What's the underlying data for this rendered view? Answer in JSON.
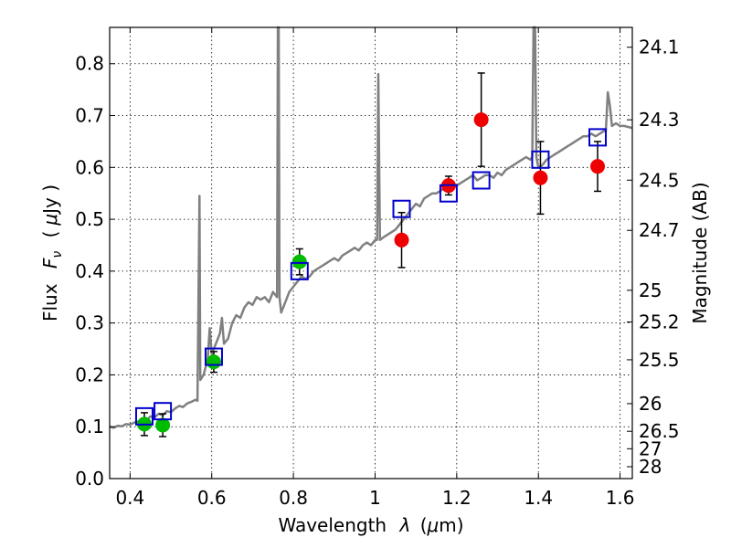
{
  "chart_data": {
    "type": "scatter",
    "xlabel_prefix": "Wavelength",
    "xlabel_var": "λ",
    "xlabel_unit_open": "(",
    "xlabel_unit_mu": "μ",
    "xlabel_unit_rest": "m)",
    "ylabel_prefix": "Flux",
    "ylabel_var": "F",
    "ylabel_sub": "ν",
    "ylabel_unit_open": "(",
    "ylabel_unit_mu": "μ",
    "ylabel_unit_rest": "Jy )",
    "y2label": "Magnitude (AB)",
    "xlim": [
      0.35,
      1.63
    ],
    "ylim": [
      0.0,
      0.87
    ],
    "grid": true,
    "x_ticks": [
      0.4,
      0.6,
      0.8,
      1.0,
      1.2,
      1.4,
      1.6
    ],
    "x_tick_labels": [
      "0.4",
      "0.6",
      "0.8",
      "1",
      "1.2",
      "1.4",
      "1.6"
    ],
    "y_ticks": [
      0.0,
      0.1,
      0.2,
      0.3,
      0.4,
      0.5,
      0.6,
      0.7,
      0.8
    ],
    "y_tick_labels": [
      "0.0",
      "0.1",
      "0.2",
      "0.3",
      "0.4",
      "0.5",
      "0.6",
      "0.7",
      "0.8"
    ],
    "mag_ticks": [
      "24.1",
      "24.3",
      "24.5",
      "24.7",
      "25",
      "25.2",
      "25.5",
      "26",
      "26.5",
      "27",
      "28"
    ],
    "colors": {
      "model_spectrum": "#808080",
      "ground_points": "#00bb00",
      "hst_points": "#ee0000",
      "model_photometry": "#0000cc",
      "errorbar": "#000000"
    },
    "series": [
      {
        "kind": "errorbar-markers",
        "marker": "circle",
        "color": "#00bb00",
        "points": [
          {
            "x": 0.435,
            "y": 0.105,
            "yerr": 0.022
          },
          {
            "x": 0.48,
            "y": 0.103,
            "yerr": 0.022
          },
          {
            "x": 0.605,
            "y": 0.225,
            "yerr": 0.02
          },
          {
            "x": 0.815,
            "y": 0.418,
            "yerr": 0.025
          }
        ]
      },
      {
        "kind": "errorbar-markers",
        "marker": "circle",
        "color": "#ee0000",
        "points": [
          {
            "x": 1.065,
            "y": 0.46,
            "yerr": 0.053
          },
          {
            "x": 1.18,
            "y": 0.565,
            "yerr": 0.018
          },
          {
            "x": 1.26,
            "y": 0.692,
            "yerr": 0.09
          },
          {
            "x": 1.405,
            "y": 0.58,
            "yerr": 0.07
          },
          {
            "x": 1.545,
            "y": 0.602,
            "yerr": 0.048
          }
        ]
      },
      {
        "kind": "markers",
        "marker": "open-square",
        "color": "#0000cc",
        "points": [
          {
            "x": 0.435,
            "y": 0.12
          },
          {
            "x": 0.48,
            "y": 0.13
          },
          {
            "x": 0.605,
            "y": 0.235
          },
          {
            "x": 0.815,
            "y": 0.4
          },
          {
            "x": 1.065,
            "y": 0.52
          },
          {
            "x": 1.18,
            "y": 0.55
          },
          {
            "x": 1.26,
            "y": 0.575
          },
          {
            "x": 1.405,
            "y": 0.615
          },
          {
            "x": 1.545,
            "y": 0.658
          }
        ]
      },
      {
        "kind": "line",
        "color": "#808080",
        "points": [
          [
            0.35,
            0.1
          ],
          [
            0.36,
            0.098
          ],
          [
            0.37,
            0.102
          ],
          [
            0.38,
            0.101
          ],
          [
            0.39,
            0.105
          ],
          [
            0.4,
            0.104
          ],
          [
            0.41,
            0.108
          ],
          [
            0.42,
            0.11
          ],
          [
            0.43,
            0.115
          ],
          [
            0.44,
            0.112
          ],
          [
            0.45,
            0.12
          ],
          [
            0.46,
            0.118
          ],
          [
            0.47,
            0.125
          ],
          [
            0.48,
            0.122
          ],
          [
            0.49,
            0.13
          ],
          [
            0.5,
            0.128
          ],
          [
            0.51,
            0.135
          ],
          [
            0.52,
            0.14
          ],
          [
            0.53,
            0.138
          ],
          [
            0.54,
            0.145
          ],
          [
            0.55,
            0.148
          ],
          [
            0.56,
            0.152
          ],
          [
            0.565,
            0.15
          ],
          [
            0.57,
            0.545
          ],
          [
            0.572,
            0.19
          ],
          [
            0.58,
            0.2
          ],
          [
            0.59,
            0.23
          ],
          [
            0.595,
            0.29
          ],
          [
            0.6,
            0.24
          ],
          [
            0.61,
            0.26
          ],
          [
            0.62,
            0.28
          ],
          [
            0.625,
            0.31
          ],
          [
            0.63,
            0.26
          ],
          [
            0.64,
            0.27
          ],
          [
            0.65,
            0.3
          ],
          [
            0.66,
            0.315
          ],
          [
            0.67,
            0.31
          ],
          [
            0.68,
            0.33
          ],
          [
            0.69,
            0.34
          ],
          [
            0.7,
            0.335
          ],
          [
            0.71,
            0.35
          ],
          [
            0.72,
            0.345
          ],
          [
            0.73,
            0.35
          ],
          [
            0.74,
            0.34
          ],
          [
            0.75,
            0.36
          ],
          [
            0.76,
            0.35
          ],
          [
            0.762,
            0.87
          ],
          [
            0.764,
            0.87
          ],
          [
            0.766,
            0.35
          ],
          [
            0.77,
            0.32
          ],
          [
            0.78,
            0.34
          ],
          [
            0.79,
            0.36
          ],
          [
            0.8,
            0.37
          ],
          [
            0.81,
            0.38
          ],
          [
            0.82,
            0.39
          ],
          [
            0.83,
            0.385
          ],
          [
            0.84,
            0.39
          ],
          [
            0.85,
            0.4
          ],
          [
            0.86,
            0.405
          ],
          [
            0.87,
            0.41
          ],
          [
            0.88,
            0.415
          ],
          [
            0.89,
            0.42
          ],
          [
            0.9,
            0.425
          ],
          [
            0.91,
            0.42
          ],
          [
            0.92,
            0.43
          ],
          [
            0.93,
            0.435
          ],
          [
            0.94,
            0.44
          ],
          [
            0.95,
            0.445
          ],
          [
            0.96,
            0.44
          ],
          [
            0.97,
            0.45
          ],
          [
            0.98,
            0.455
          ],
          [
            0.99,
            0.45
          ],
          [
            1.0,
            0.46
          ],
          [
            1.005,
            0.46
          ],
          [
            1.008,
            0.78
          ],
          [
            1.012,
            0.46
          ],
          [
            1.02,
            0.465
          ],
          [
            1.03,
            0.47
          ],
          [
            1.04,
            0.475
          ],
          [
            1.05,
            0.48
          ],
          [
            1.06,
            0.49
          ],
          [
            1.07,
            0.5
          ],
          [
            1.08,
            0.51
          ],
          [
            1.09,
            0.52
          ],
          [
            1.1,
            0.53
          ],
          [
            1.11,
            0.525
          ],
          [
            1.12,
            0.54
          ],
          [
            1.13,
            0.545
          ],
          [
            1.14,
            0.55
          ],
          [
            1.15,
            0.55
          ],
          [
            1.16,
            0.555
          ],
          [
            1.17,
            0.56
          ],
          [
            1.18,
            0.555
          ],
          [
            1.19,
            0.56
          ],
          [
            1.2,
            0.565
          ],
          [
            1.21,
            0.57
          ],
          [
            1.22,
            0.575
          ],
          [
            1.23,
            0.58
          ],
          [
            1.24,
            0.585
          ],
          [
            1.25,
            0.575
          ],
          [
            1.26,
            0.58
          ],
          [
            1.27,
            0.585
          ],
          [
            1.28,
            0.585
          ],
          [
            1.29,
            0.58
          ],
          [
            1.3,
            0.59
          ],
          [
            1.31,
            0.585
          ],
          [
            1.32,
            0.595
          ],
          [
            1.33,
            0.6
          ],
          [
            1.34,
            0.605
          ],
          [
            1.35,
            0.61
          ],
          [
            1.36,
            0.615
          ],
          [
            1.37,
            0.62
          ],
          [
            1.38,
            0.615
          ],
          [
            1.385,
            0.62
          ],
          [
            1.388,
            0.87
          ],
          [
            1.392,
            0.87
          ],
          [
            1.395,
            0.62
          ],
          [
            1.4,
            0.6
          ],
          [
            1.41,
            0.605
          ],
          [
            1.42,
            0.615
          ],
          [
            1.43,
            0.62
          ],
          [
            1.44,
            0.625
          ],
          [
            1.45,
            0.63
          ],
          [
            1.46,
            0.635
          ],
          [
            1.47,
            0.64
          ],
          [
            1.48,
            0.645
          ],
          [
            1.49,
            0.65
          ],
          [
            1.5,
            0.655
          ],
          [
            1.51,
            0.66
          ],
          [
            1.52,
            0.66
          ],
          [
            1.53,
            0.665
          ],
          [
            1.54,
            0.66
          ],
          [
            1.55,
            0.665
          ],
          [
            1.56,
            0.67
          ],
          [
            1.565,
            0.67
          ],
          [
            1.57,
            0.745
          ],
          [
            1.575,
            0.72
          ],
          [
            1.58,
            0.68
          ],
          [
            1.59,
            0.685
          ],
          [
            1.6,
            0.68
          ],
          [
            1.61,
            0.68
          ],
          [
            1.62,
            0.678
          ],
          [
            1.63,
            0.676
          ]
        ]
      }
    ]
  }
}
